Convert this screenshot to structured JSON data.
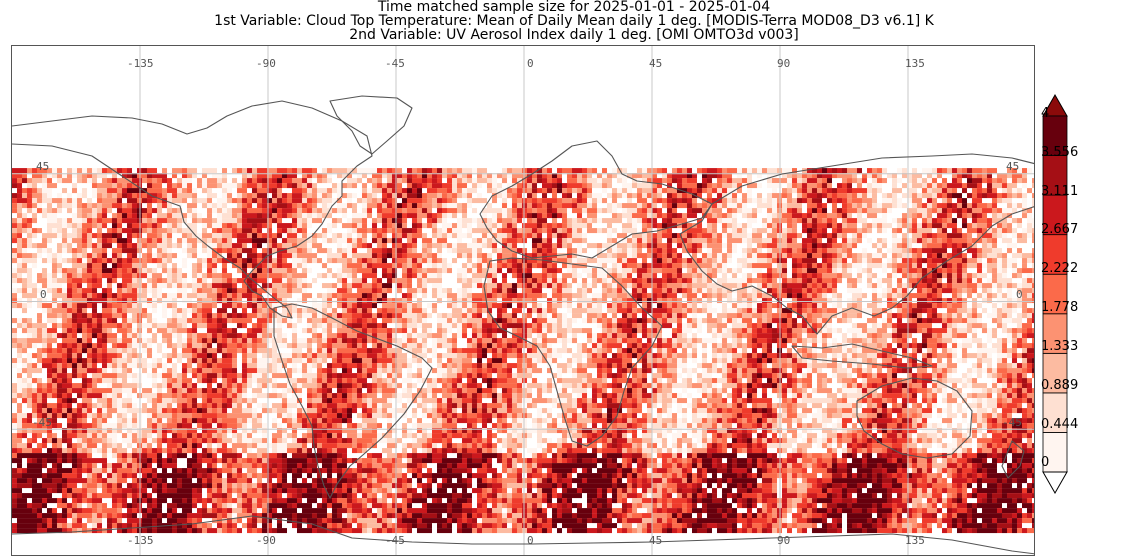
{
  "title": {
    "line1": "Time matched sample size for 2025-01-01 - 2025-01-04",
    "line2": "1st Variable: Cloud Top Temperature: Mean of Daily Mean daily 1 deg. [MODIS-Terra MOD08_D3 v6.1] K",
    "line3": "2nd Variable: UV Aerosol Index daily 1 deg. [OMI OMTO3d v003]"
  },
  "map": {
    "lon_range": [
      -180,
      180
    ],
    "lat_range": [
      -90,
      90
    ],
    "data_lat_range": [
      -80,
      47
    ],
    "lon_ticks_top": [
      "-135",
      "-90",
      "-45",
      "0",
      "45",
      "90",
      "135"
    ],
    "lon_ticks_bottom": [
      "-135",
      "-90",
      "-45",
      "0",
      "45",
      "90",
      "135"
    ],
    "lat_ticks_left": [
      "45",
      "0",
      "-45"
    ],
    "lat_ticks_right": [
      "45",
      "0",
      "-45"
    ],
    "gridline_color": "#c8c8c8",
    "coastline_color": "#555555"
  },
  "colorbar": {
    "labels": [
      "4",
      "3.556",
      "3.111",
      "2.667",
      "2.222",
      "1.778",
      "1.333",
      "0.889",
      "0.444",
      "0"
    ],
    "colors": [
      "#fff5f0",
      "#fee0d2",
      "#fcbba1",
      "#fc9272",
      "#fb6a4a",
      "#ef3b2c",
      "#cb181d",
      "#a50f15",
      "#67000d"
    ],
    "over_color": "#8b0a0a",
    "under_color": "#ffffff"
  }
}
